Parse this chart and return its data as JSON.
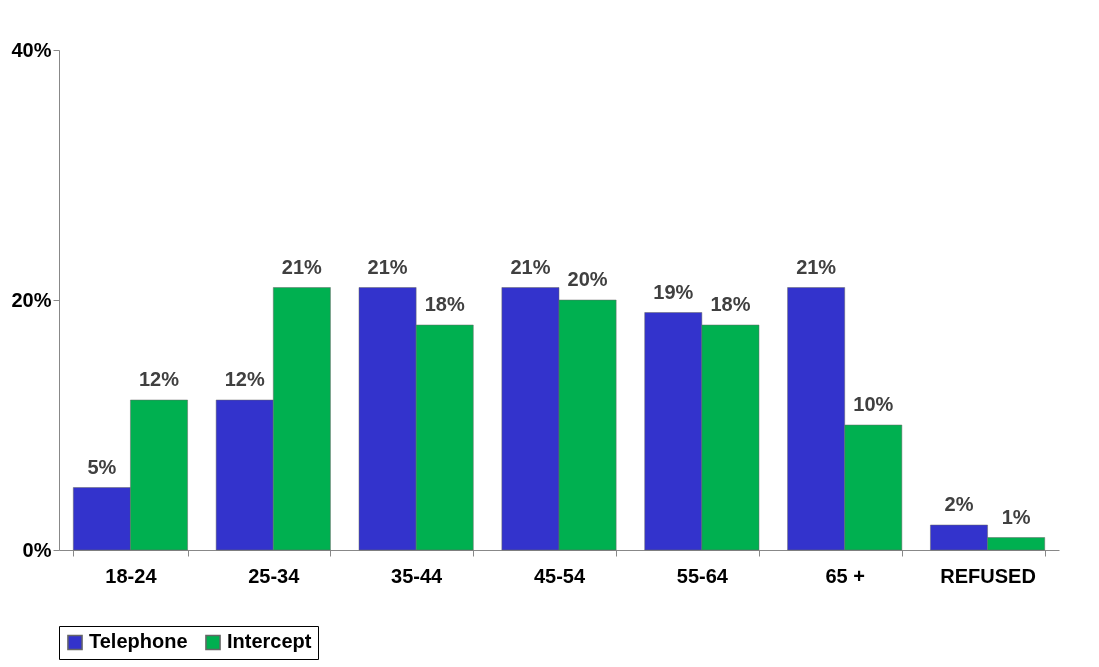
{
  "chart_data": {
    "type": "bar",
    "categories": [
      "18-24",
      "25-34",
      "35-44",
      "45-54",
      "55-64",
      "65 +",
      "REFUSED"
    ],
    "series": [
      {
        "name": "Telephone",
        "color": "#3333cc",
        "values": [
          5,
          12,
          21,
          21,
          19,
          21,
          2
        ],
        "value_labels": [
          "5%",
          "12%",
          "21%",
          "21%",
          "19%",
          "21%",
          "2%"
        ]
      },
      {
        "name": "Intercept",
        "color": "#00b050",
        "values": [
          12,
          21,
          18,
          20,
          18,
          10,
          1
        ],
        "value_labels": [
          "12%",
          "21%",
          "18%",
          "20%",
          "18%",
          "10%",
          "1%"
        ]
      }
    ],
    "ylim": [
      0,
      40
    ],
    "yticks": [
      {
        "value": 0,
        "label": "0%"
      },
      {
        "value": 20,
        "label": "20%"
      },
      {
        "value": 40,
        "label": "40%"
      }
    ],
    "grid": false,
    "legend": "bottom"
  }
}
